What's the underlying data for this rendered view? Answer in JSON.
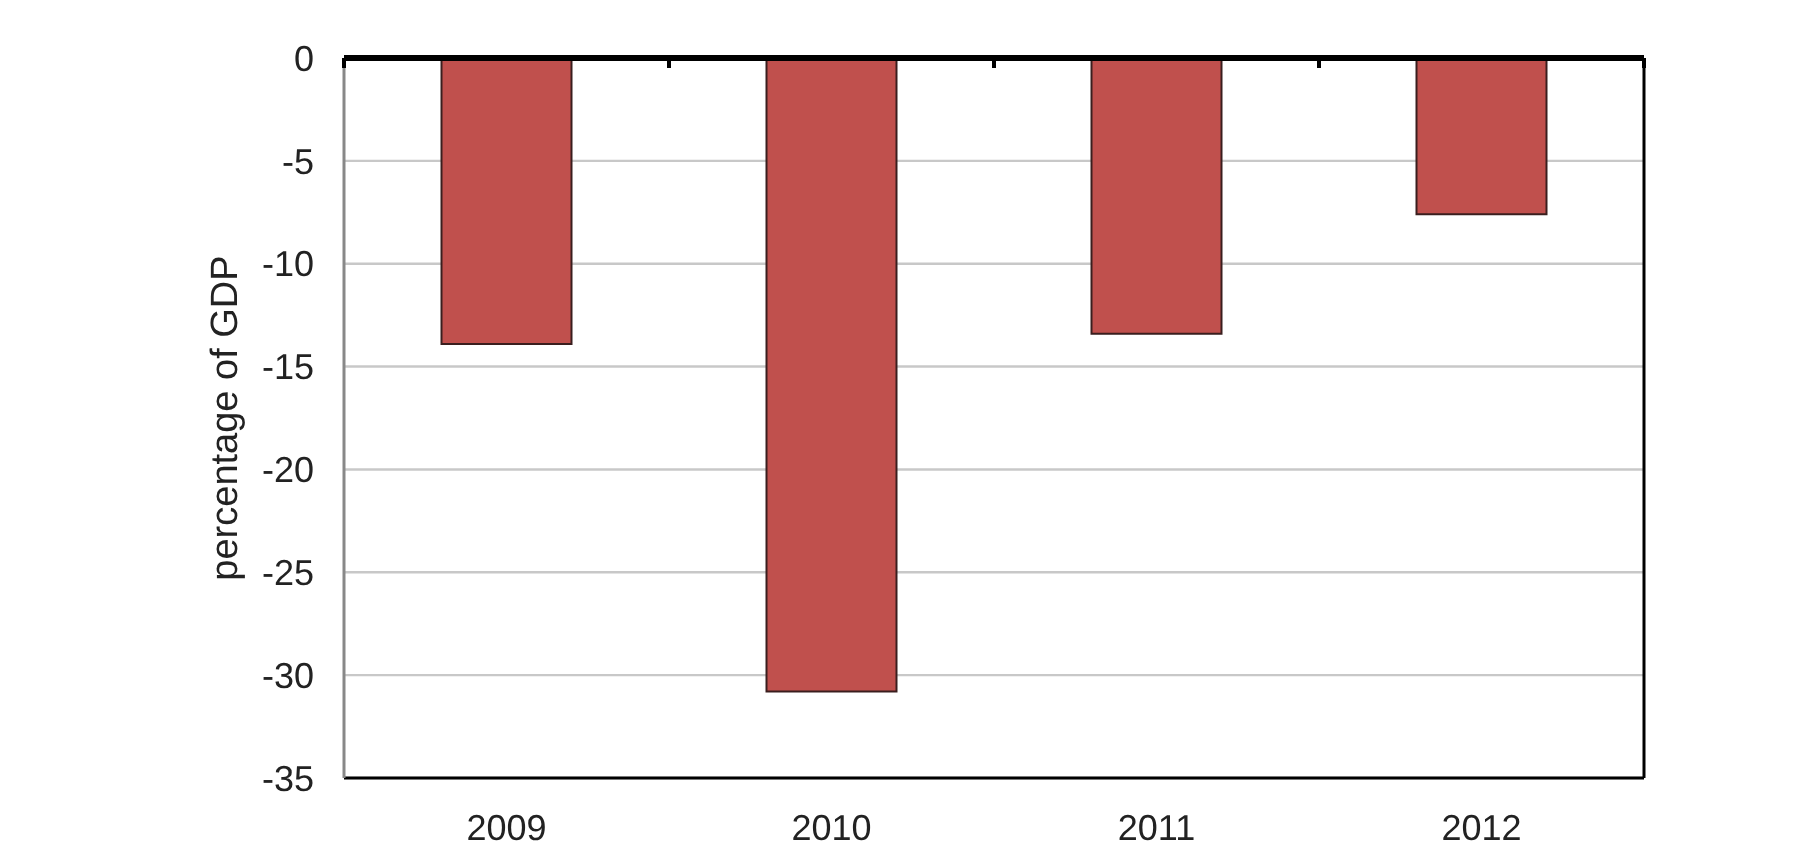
{
  "chart_data": {
    "type": "bar",
    "ylabel": "percentage of GDP",
    "categories": [
      "2009",
      "2010",
      "2011",
      "2012"
    ],
    "values": [
      -13.9,
      -30.8,
      -13.4,
      -7.6
    ],
    "color": "#c0504d",
    "ylim": [
      -35,
      0
    ],
    "yticks": [
      -35,
      -30,
      -25,
      -20,
      -15,
      -10,
      -5,
      0
    ],
    "grid": "y"
  }
}
